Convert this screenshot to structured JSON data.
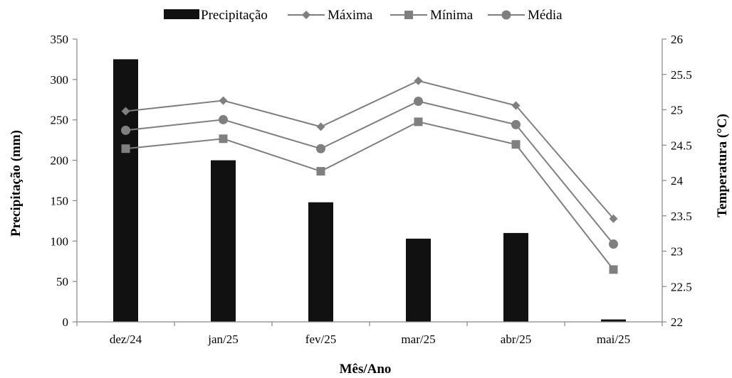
{
  "chart_data": {
    "type": "bar",
    "categories": [
      "dez/24",
      "jan/25",
      "fev/25",
      "mar/25",
      "abr/25",
      "mai/25"
    ],
    "title": "",
    "xlabel": "Mês/Ano",
    "ylabel": "Precipitação (mm)",
    "y2label": "Temperatura (°C)",
    "ylim": [
      0,
      350
    ],
    "y2lim": [
      22,
      26
    ],
    "yticks": [
      "0",
      "50",
      "100",
      "150",
      "200",
      "250",
      "300",
      "350"
    ],
    "y2ticks": [
      "22",
      "22.5",
      "23",
      "23.5",
      "24",
      "24.5",
      "25",
      "25.5",
      "26"
    ],
    "grid": false,
    "legend_position": "top",
    "bar_series": {
      "name": "Precipitação",
      "values": [
        325,
        200,
        148,
        103,
        110,
        3
      ],
      "color": "#111111"
    },
    "line_series": [
      {
        "name": "Máxima",
        "marker": "diamond",
        "values": [
          24.98,
          25.13,
          24.76,
          25.41,
          25.06,
          23.46
        ],
        "color": "#7f7f7f"
      },
      {
        "name": "Mínima",
        "marker": "square",
        "values": [
          24.45,
          24.59,
          24.13,
          24.83,
          24.51,
          22.74
        ],
        "color": "#7f7f7f"
      },
      {
        "name": "Média",
        "marker": "circle",
        "values": [
          24.71,
          24.86,
          24.45,
          25.12,
          24.79,
          23.1
        ],
        "color": "#7f7f7f"
      }
    ]
  }
}
